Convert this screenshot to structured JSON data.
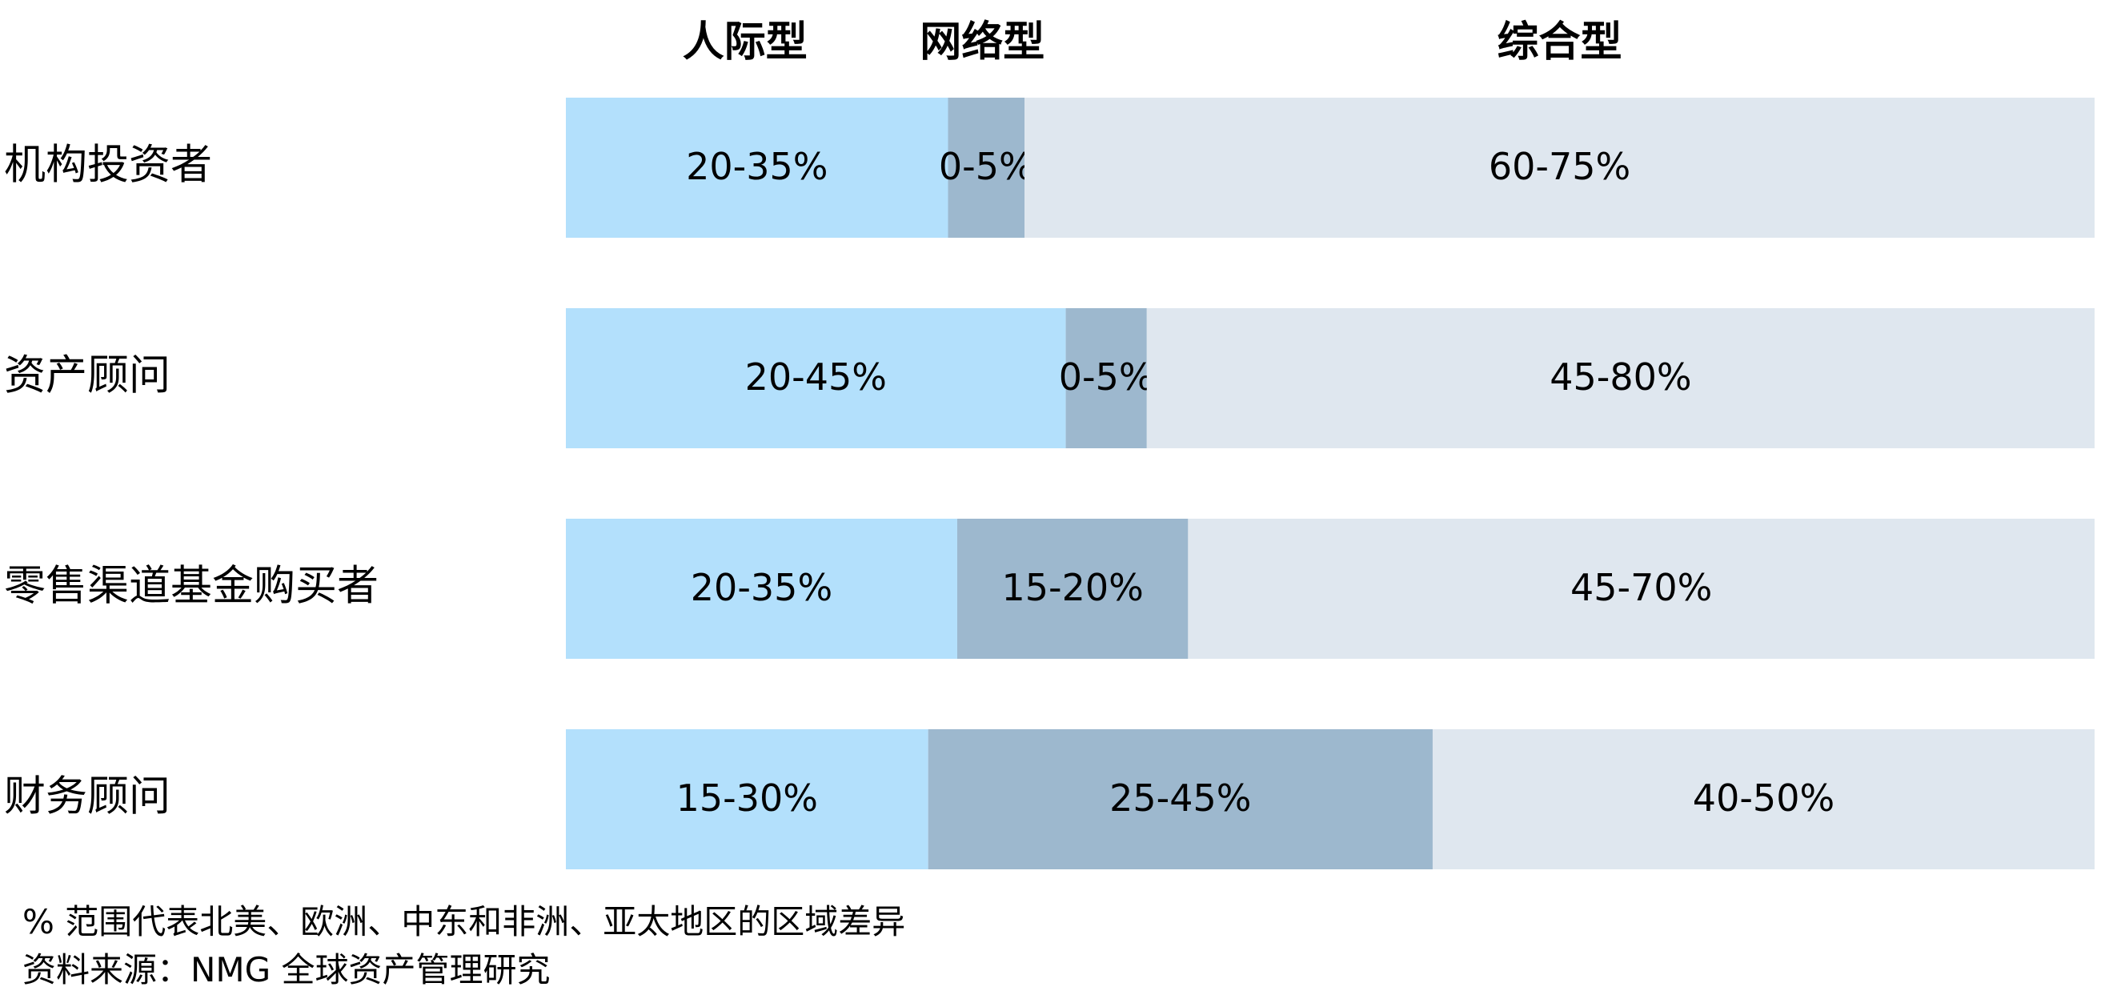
{
  "chart_data": {
    "type": "bar",
    "stacked": true,
    "orientation": "horizontal",
    "series": [
      {
        "name": "人际型",
        "color": "#b3e0fc"
      },
      {
        "name": "网络型",
        "color": "#9db8ce"
      },
      {
        "name": "综合型",
        "color": "#dfe7ef"
      }
    ],
    "rows": [
      {
        "name": "机构投资者",
        "segments": [
          {
            "label": "20-35%",
            "share": 25
          },
          {
            "label": "0-5%",
            "share": 5
          },
          {
            "label": "60-75%",
            "share": 70
          }
        ]
      },
      {
        "name": "资产顾问",
        "segments": [
          {
            "label": "20-45%",
            "share": 32.7
          },
          {
            "label": "0-5%",
            "share": 5.3
          },
          {
            "label": "45-80%",
            "share": 62
          }
        ]
      },
      {
        "name": "零售渠道基金购买者",
        "segments": [
          {
            "label": "20-35%",
            "share": 25.6
          },
          {
            "label": "15-20%",
            "share": 15.1
          },
          {
            "label": "45-70%",
            "share": 59.3
          }
        ]
      },
      {
        "name": "财务顾问",
        "segments": [
          {
            "label": "15-30%",
            "share": 23.7
          },
          {
            "label": "25-45%",
            "share": 33
          },
          {
            "label": "40-50%",
            "share": 43.3
          }
        ]
      }
    ]
  },
  "footnotes": [
    "% 范围代表北美、欧洲、中东和非洲、亚太地区的区域差异",
    "资料来源：NMG 全球资产管理研究"
  ]
}
